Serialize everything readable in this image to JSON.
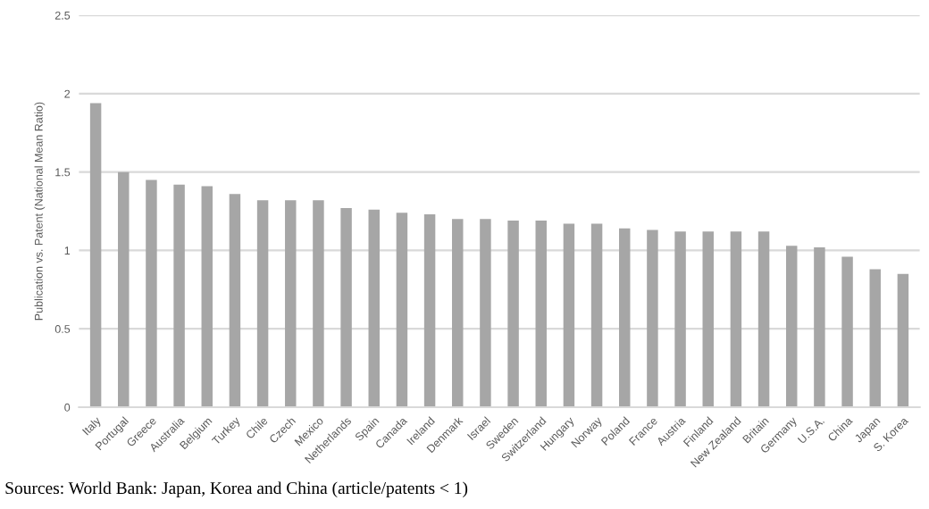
{
  "chart_data": {
    "type": "bar",
    "ylabel": "Publication vs. Patent (National Mean Ratio)",
    "categories": [
      "Italy",
      "Portugal",
      "Greece",
      "Australia",
      "Belgium",
      "Turkey",
      "Chile",
      "Czech",
      "Mexico",
      "Netherlands",
      "Spain",
      "Canada",
      "Ireland",
      "Denmark",
      "Israel",
      "Sweden",
      "Switzerland",
      "Hungary",
      "Norway",
      "Poland",
      "France",
      "Austria",
      "Finland",
      "New Zealand",
      "Britain",
      "Germany",
      "U.S.A.",
      "China",
      "Japan",
      "S. Korea"
    ],
    "values": [
      1.94,
      1.5,
      1.45,
      1.42,
      1.41,
      1.36,
      1.32,
      1.32,
      1.32,
      1.27,
      1.26,
      1.24,
      1.23,
      1.2,
      1.2,
      1.19,
      1.19,
      1.17,
      1.17,
      1.14,
      1.13,
      1.12,
      1.12,
      1.12,
      1.12,
      1.03,
      1.02,
      0.96,
      0.88,
      0.85
    ],
    "color": "#a6a6a6",
    "ylim": [
      0,
      2.5
    ],
    "yticks": [
      0,
      0.5,
      1,
      1.5,
      2,
      2.5
    ],
    "grid": "y",
    "annotations": [
      "Sources: World Bank: Japan, Korea and China (article/patents < 1)"
    ]
  }
}
